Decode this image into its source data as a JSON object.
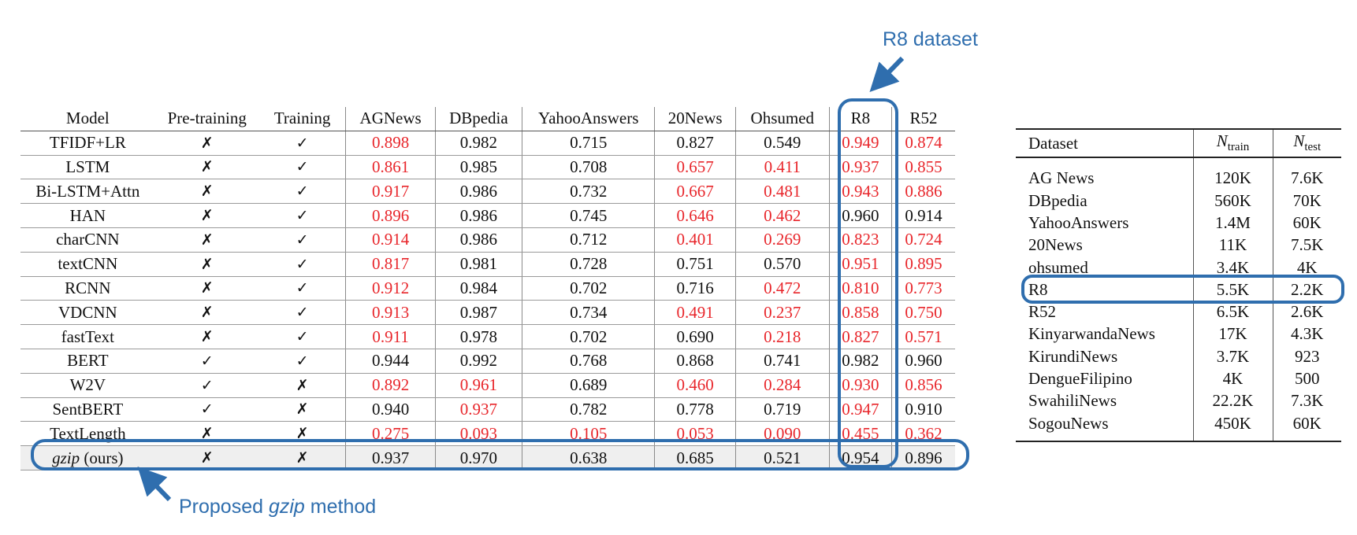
{
  "annotations": {
    "r8_dataset_label": "R8 dataset",
    "proposed_prefix": "Proposed ",
    "proposed_italic": "gzip",
    "proposed_suffix": " method",
    "box_color": "#2f6eae"
  },
  "main_table": {
    "headers": [
      "Model",
      "Pre-training",
      "Training",
      "AGNews",
      "DBpedia",
      "YahooAnswers",
      "20News",
      "Ohsumed",
      "R8",
      "R52"
    ],
    "highlight_color": "#e8262b",
    "rows": [
      {
        "model": "TFIDF+LR",
        "pre": "✗",
        "train": "✓",
        "vals": [
          "0.898",
          "0.982",
          "0.715",
          "0.827",
          "0.549",
          "0.949",
          "0.874"
        ],
        "red": [
          true,
          false,
          false,
          false,
          false,
          true,
          true
        ]
      },
      {
        "model": "LSTM",
        "pre": "✗",
        "train": "✓",
        "vals": [
          "0.861",
          "0.985",
          "0.708",
          "0.657",
          "0.411",
          "0.937",
          "0.855"
        ],
        "red": [
          true,
          false,
          false,
          true,
          true,
          true,
          true
        ]
      },
      {
        "model": "Bi-LSTM+Attn",
        "pre": "✗",
        "train": "✓",
        "vals": [
          "0.917",
          "0.986",
          "0.732",
          "0.667",
          "0.481",
          "0.943",
          "0.886"
        ],
        "red": [
          true,
          false,
          false,
          true,
          true,
          true,
          true
        ]
      },
      {
        "model": "HAN",
        "pre": "✗",
        "train": "✓",
        "vals": [
          "0.896",
          "0.986",
          "0.745",
          "0.646",
          "0.462",
          "0.960",
          "0.914"
        ],
        "red": [
          true,
          false,
          false,
          true,
          true,
          false,
          false
        ]
      },
      {
        "model": "charCNN",
        "pre": "✗",
        "train": "✓",
        "vals": [
          "0.914",
          "0.986",
          "0.712",
          "0.401",
          "0.269",
          "0.823",
          "0.724"
        ],
        "red": [
          true,
          false,
          false,
          true,
          true,
          true,
          true
        ]
      },
      {
        "model": "textCNN",
        "pre": "✗",
        "train": "✓",
        "vals": [
          "0.817",
          "0.981",
          "0.728",
          "0.751",
          "0.570",
          "0.951",
          "0.895"
        ],
        "red": [
          true,
          false,
          false,
          false,
          false,
          true,
          true
        ]
      },
      {
        "model": "RCNN",
        "pre": "✗",
        "train": "✓",
        "vals": [
          "0.912",
          "0.984",
          "0.702",
          "0.716",
          "0.472",
          "0.810",
          "0.773"
        ],
        "red": [
          true,
          false,
          false,
          false,
          true,
          true,
          true
        ]
      },
      {
        "model": "VDCNN",
        "pre": "✗",
        "train": "✓",
        "vals": [
          "0.913",
          "0.987",
          "0.734",
          "0.491",
          "0.237",
          "0.858",
          "0.750"
        ],
        "red": [
          true,
          false,
          false,
          true,
          true,
          true,
          true
        ]
      },
      {
        "model": "fastText",
        "pre": "✗",
        "train": "✓",
        "vals": [
          "0.911",
          "0.978",
          "0.702",
          "0.690",
          "0.218",
          "0.827",
          "0.571"
        ],
        "red": [
          true,
          false,
          false,
          false,
          true,
          true,
          true
        ]
      },
      {
        "model": "BERT",
        "pre": "✓",
        "train": "✓",
        "vals": [
          "0.944",
          "0.992",
          "0.768",
          "0.868",
          "0.741",
          "0.982",
          "0.960"
        ],
        "red": [
          false,
          false,
          false,
          false,
          false,
          false,
          false
        ]
      },
      {
        "model": "W2V",
        "pre": "✓",
        "train": "✗",
        "vals": [
          "0.892",
          "0.961",
          "0.689",
          "0.460",
          "0.284",
          "0.930",
          "0.856"
        ],
        "red": [
          true,
          true,
          false,
          true,
          true,
          true,
          true
        ]
      },
      {
        "model": "SentBERT",
        "pre": "✓",
        "train": "✗",
        "vals": [
          "0.940",
          "0.937",
          "0.782",
          "0.778",
          "0.719",
          "0.947",
          "0.910"
        ],
        "red": [
          false,
          true,
          false,
          false,
          false,
          true,
          false
        ]
      },
      {
        "model": "TextLength",
        "pre": "✗",
        "train": "✗",
        "vals": [
          "0.275",
          "0.093",
          "0.105",
          "0.053",
          "0.090",
          "0.455",
          "0.362"
        ],
        "red": [
          true,
          true,
          true,
          true,
          true,
          true,
          true
        ]
      }
    ],
    "gzip_row": {
      "model_italic": "gzip",
      "model_suffix": " (ours)",
      "pre": "✗",
      "train": "✗",
      "vals": [
        "0.937",
        "0.970",
        "0.638",
        "0.685",
        "0.521",
        "0.954",
        "0.896"
      ]
    }
  },
  "stats_table": {
    "header_dataset": "Dataset",
    "header_ntrain_base": "N",
    "header_ntrain_sub": "train",
    "header_ntest_base": "N",
    "header_ntest_sub": "test",
    "rows": [
      {
        "name": "AG News",
        "train": "120K",
        "test": "7.6K"
      },
      {
        "name": "DBpedia",
        "train": "560K",
        "test": "70K"
      },
      {
        "name": "YahooAnswers",
        "train": "1.4M",
        "test": "60K"
      },
      {
        "name": "20News",
        "train": "11K",
        "test": "7.5K"
      },
      {
        "name": "ohsumed",
        "train": "3.4K",
        "test": "4K"
      },
      {
        "name": "R8",
        "train": "5.5K",
        "test": "2.2K"
      },
      {
        "name": "R52",
        "train": "6.5K",
        "test": "2.6K"
      },
      {
        "name": "KinyarwandaNews",
        "train": "17K",
        "test": "4.3K"
      },
      {
        "name": "KirundiNews",
        "train": "3.7K",
        "test": "923"
      },
      {
        "name": "DengueFilipino",
        "train": "4K",
        "test": "500"
      },
      {
        "name": "SwahiliNews",
        "train": "22.2K",
        "test": "7.3K"
      },
      {
        "name": "SogouNews",
        "train": "450K",
        "test": "60K"
      }
    ]
  }
}
